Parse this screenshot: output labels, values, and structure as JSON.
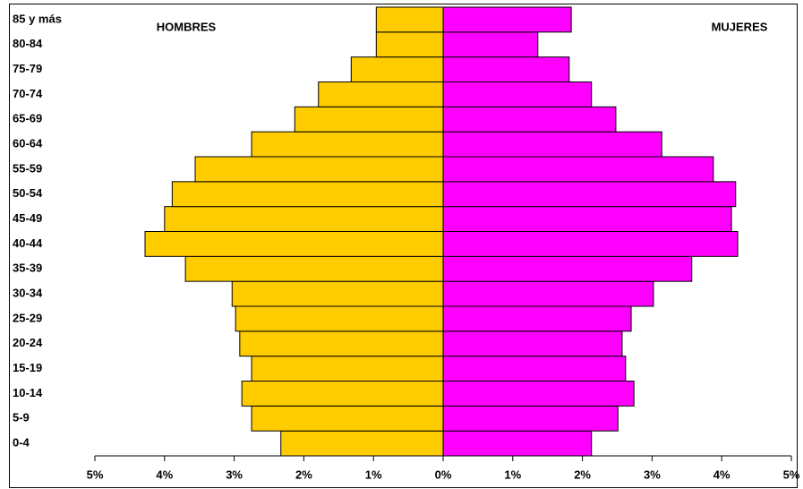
{
  "chart_data": {
    "type": "pyramid",
    "categories": [
      "0-4",
      "5-9",
      "10-14",
      "15-19",
      "20-24",
      "25-29",
      "30-34",
      "35-39",
      "40-44",
      "45-49",
      "50-54",
      "55-59",
      "60-64",
      "65-69",
      "70-74",
      "75-79",
      "80-84",
      "85 y más"
    ],
    "series": [
      {
        "name": "HOMBRES",
        "color": "#ffcc00",
        "values": [
          -2.33,
          -2.75,
          -2.89,
          -2.75,
          -2.92,
          -2.98,
          -3.03,
          -3.7,
          -4.28,
          -4.0,
          -3.89,
          -3.56,
          -2.75,
          -2.13,
          -1.79,
          -1.32,
          -0.96,
          -0.96
        ]
      },
      {
        "name": "MUJERES",
        "color": "#ff00ff",
        "values": [
          2.13,
          2.51,
          2.74,
          2.62,
          2.57,
          2.7,
          3.02,
          3.57,
          4.23,
          4.14,
          4.2,
          3.88,
          3.14,
          2.48,
          2.13,
          1.81,
          1.36,
          1.84
        ]
      }
    ],
    "xlim": [
      -5,
      5
    ],
    "xticks": [
      {
        "value": -5,
        "label": "5%"
      },
      {
        "value": -4,
        "label": "4%"
      },
      {
        "value": -3,
        "label": "3%"
      },
      {
        "value": -2,
        "label": "2%"
      },
      {
        "value": -1,
        "label": "1%"
      },
      {
        "value": 0,
        "label": "0%"
      },
      {
        "value": 1,
        "label": "1%"
      },
      {
        "value": 2,
        "label": "2%"
      },
      {
        "value": 3,
        "label": "3%"
      },
      {
        "value": 4,
        "label": "4%"
      },
      {
        "value": 5,
        "label": "5%"
      }
    ]
  }
}
